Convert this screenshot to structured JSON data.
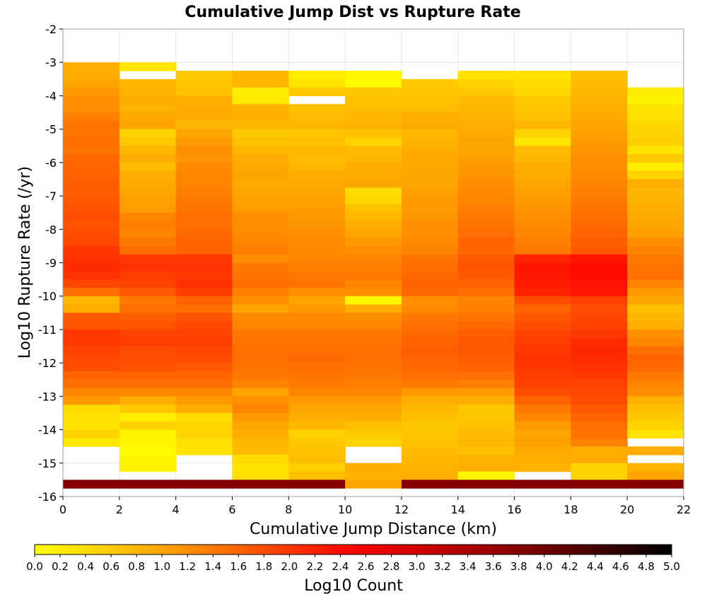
{
  "chart_data": {
    "type": "heatmap",
    "title": "Cumulative Jump Dist vs Rupture Rate",
    "xlabel": "Cumulative Jump Distance (km)",
    "ylabel": "Log10 Rupture Rate (/yr)",
    "xlim": [
      0,
      22
    ],
    "ylim": [
      -16,
      -2
    ],
    "x_ticks": [
      "0",
      "2",
      "4",
      "6",
      "8",
      "10",
      "12",
      "14",
      "16",
      "18",
      "20",
      "22"
    ],
    "y_ticks": [
      "-2",
      "-3",
      "-4",
      "-5",
      "-6",
      "-7",
      "-8",
      "-9",
      "-10",
      "-11",
      "-12",
      "-13",
      "-14",
      "-15",
      "-16"
    ],
    "x_bin_width": 2,
    "y_bin_width": 0.25,
    "y_bins_top_down_from": -3,
    "x_bin_starts": [
      0,
      2,
      4,
      6,
      8,
      10,
      12,
      14,
      16,
      18,
      20
    ],
    "grid": true,
    "colorbar": {
      "label": "Log10 Count",
      "min": 0.0,
      "max": 5.0,
      "ticks": [
        "0.0",
        "0.2",
        "0.4",
        "0.6",
        "0.8",
        "1.0",
        "1.2",
        "1.4",
        "1.6",
        "1.8",
        "2.0",
        "2.2",
        "2.4",
        "2.6",
        "2.8",
        "3.0",
        "3.2",
        "3.4",
        "3.6",
        "3.8",
        "4.0",
        "4.2",
        "4.4",
        "4.6",
        "4.8",
        "5.0"
      ],
      "colors": [
        "#ffff00",
        "#ffa500",
        "#ff0000",
        "#8b0000",
        "#000000"
      ],
      "color_stops": [
        0.0,
        1.0,
        2.5,
        3.75,
        5.0
      ]
    },
    "log10_count_columns": [
      [
        0.9,
        0.9,
        1.0,
        1.1,
        1.2,
        1.2,
        1.35,
        1.45,
        1.45,
        1.5,
        1.45,
        1.55,
        1.6,
        1.6,
        1.65,
        1.65,
        1.7,
        1.75,
        1.8,
        1.75,
        1.8,
        1.85,
        2.0,
        2.05,
        2.1,
        2.05,
        1.85,
        1.5,
        0.8,
        0.9,
        1.7,
        1.75,
        2.0,
        2.0,
        1.9,
        1.85,
        1.8,
        1.6,
        1.5,
        1.3,
        1.1,
        0.4,
        0.35,
        0.3,
        0.5,
        0.25,
        null,
        null,
        null,
        null,
        3.8
      ],
      [
        0.3,
        null,
        0.8,
        0.85,
        0.9,
        0.85,
        0.95,
        1.0,
        0.5,
        0.6,
        0.8,
        0.9,
        0.75,
        0.9,
        0.95,
        1.0,
        1.05,
        1.1,
        1.3,
        1.35,
        1.3,
        1.4,
        1.5,
        2.0,
        2.05,
        1.95,
        1.9,
        1.7,
        1.4,
        1.5,
        1.65,
        1.75,
        1.9,
        1.95,
        1.8,
        1.8,
        1.75,
        1.6,
        1.5,
        1.3,
        0.9,
        0.6,
        0.2,
        0.5,
        0.1,
        0.1,
        0.05,
        0.1,
        0.15,
        null,
        3.8
      ],
      [
        null,
        0.6,
        0.65,
        0.7,
        0.9,
        0.95,
        0.9,
        0.8,
        1.0,
        1.1,
        1.2,
        1.15,
        1.25,
        1.3,
        1.3,
        1.35,
        1.4,
        1.45,
        1.5,
        1.5,
        1.55,
        1.6,
        1.6,
        2.0,
        2.05,
        2.0,
        2.05,
        1.95,
        1.6,
        1.5,
        1.75,
        1.85,
        1.9,
        1.95,
        1.85,
        1.8,
        1.7,
        1.6,
        1.5,
        1.3,
        1.1,
        0.9,
        0.4,
        0.45,
        0.5,
        0.35,
        0.3,
        null,
        null,
        null,
        3.8
      ],
      [
        null,
        0.8,
        0.8,
        0.2,
        0.25,
        0.85,
        0.9,
        0.8,
        0.6,
        0.7,
        0.8,
        0.9,
        0.95,
        1.0,
        0.95,
        1.0,
        1.05,
        1.1,
        1.2,
        1.2,
        1.25,
        1.3,
        1.35,
        1.2,
        1.4,
        1.45,
        1.5,
        1.35,
        1.2,
        1.0,
        1.25,
        1.3,
        1.4,
        1.45,
        1.5,
        1.5,
        1.45,
        1.4,
        1.3,
        1.0,
        1.2,
        1.3,
        1.1,
        1.0,
        0.9,
        0.8,
        0.75,
        0.4,
        0.3,
        0.35,
        3.8
      ],
      [
        null,
        0.2,
        0.3,
        0.6,
        null,
        0.7,
        0.75,
        0.8,
        0.65,
        0.7,
        0.8,
        0.75,
        0.8,
        0.9,
        0.95,
        1.0,
        1.05,
        1.1,
        1.1,
        1.15,
        1.2,
        1.25,
        1.25,
        1.3,
        1.35,
        1.4,
        1.45,
        1.2,
        1.0,
        1.1,
        1.25,
        1.3,
        1.4,
        1.45,
        1.5,
        1.55,
        1.5,
        1.45,
        1.4,
        1.3,
        1.1,
        1.0,
        0.9,
        0.8,
        0.5,
        0.6,
        0.7,
        0.75,
        0.55,
        0.7,
        3.8
      ],
      [
        null,
        0.1,
        0.05,
        0.6,
        0.7,
        0.75,
        0.8,
        0.85,
        0.7,
        0.5,
        0.75,
        0.8,
        0.9,
        0.95,
        1.0,
        0.4,
        0.45,
        0.7,
        0.8,
        0.9,
        1.0,
        1.1,
        1.2,
        1.3,
        1.35,
        1.4,
        1.3,
        1.2,
        0.1,
        0.9,
        1.2,
        1.3,
        1.4,
        1.45,
        1.5,
        1.5,
        1.45,
        1.4,
        1.35,
        1.3,
        1.1,
        1.0,
        0.9,
        0.7,
        0.6,
        0.5,
        null,
        null,
        0.9,
        0.85,
        1.0
      ],
      [
        null,
        null,
        0.6,
        0.65,
        0.7,
        0.75,
        0.9,
        0.95,
        0.8,
        0.85,
        0.9,
        0.95,
        0.95,
        1.0,
        1.0,
        1.05,
        1.1,
        1.1,
        1.15,
        1.2,
        1.2,
        1.25,
        1.3,
        1.45,
        1.5,
        1.55,
        1.6,
        1.55,
        1.2,
        1.25,
        1.4,
        1.5,
        1.55,
        1.6,
        1.65,
        1.6,
        1.55,
        1.5,
        1.4,
        1.1,
        0.9,
        0.8,
        0.7,
        0.6,
        0.65,
        0.7,
        0.75,
        0.8,
        0.85,
        0.9,
        3.8
      ],
      [
        null,
        0.3,
        0.5,
        0.6,
        0.75,
        0.8,
        0.85,
        0.9,
        0.95,
        1.0,
        1.0,
        1.05,
        1.1,
        1.15,
        1.2,
        1.25,
        1.3,
        1.35,
        1.4,
        1.45,
        1.5,
        1.6,
        1.55,
        1.7,
        1.75,
        1.7,
        1.6,
        1.5,
        1.3,
        1.35,
        1.45,
        1.55,
        1.65,
        1.7,
        1.7,
        1.65,
        1.6,
        1.5,
        1.35,
        1.1,
        0.9,
        0.6,
        0.65,
        0.7,
        0.75,
        0.8,
        0.7,
        0.85,
        0.9,
        0.1,
        3.8
      ],
      [
        null,
        0.3,
        0.4,
        0.45,
        0.6,
        0.65,
        0.7,
        0.8,
        0.5,
        0.3,
        0.75,
        0.8,
        0.9,
        0.95,
        1.0,
        1.05,
        1.1,
        1.15,
        1.2,
        1.25,
        1.3,
        1.35,
        1.4,
        2.2,
        2.3,
        2.3,
        2.25,
        2.2,
        1.8,
        1.6,
        1.7,
        1.8,
        1.9,
        1.95,
        2.0,
        2.05,
        2.0,
        1.95,
        1.9,
        1.8,
        1.6,
        1.4,
        1.3,
        1.1,
        1.0,
        1.05,
        0.95,
        0.9,
        0.85,
        null,
        3.8
      ],
      [
        null,
        0.7,
        0.75,
        0.8,
        0.85,
        0.9,
        0.95,
        1.0,
        1.05,
        1.1,
        1.15,
        1.2,
        1.2,
        1.25,
        1.3,
        1.35,
        1.4,
        1.45,
        1.5,
        1.55,
        1.6,
        1.65,
        1.7,
        2.3,
        2.4,
        2.4,
        2.35,
        2.3,
        1.9,
        1.8,
        1.85,
        1.9,
        2.0,
        2.1,
        2.15,
        2.1,
        2.05,
        2.0,
        1.9,
        1.85,
        1.8,
        1.7,
        1.6,
        1.5,
        1.45,
        1.35,
        0.9,
        0.95,
        0.5,
        0.5,
        3.8
      ],
      [
        null,
        null,
        null,
        0.2,
        0.15,
        0.3,
        0.35,
        0.45,
        0.5,
        0.55,
        0.3,
        0.6,
        0.2,
        0.5,
        0.9,
        0.8,
        0.85,
        0.9,
        0.95,
        1.0,
        1.05,
        1.2,
        1.3,
        1.4,
        1.45,
        1.5,
        1.3,
        1.1,
        1.0,
        0.7,
        0.8,
        0.9,
        1.2,
        1.3,
        1.5,
        1.6,
        1.55,
        1.4,
        1.3,
        1.2,
        0.85,
        0.7,
        0.6,
        0.5,
        0.3,
        null,
        0.9,
        null,
        0.85,
        1.0,
        3.8
      ]
    ]
  }
}
